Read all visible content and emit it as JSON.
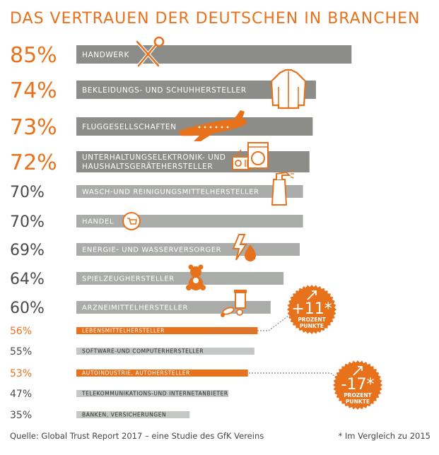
{
  "title": "DAS VERTRAUEN DER DEUTSCHEN IN BRANCHEN",
  "source": "Quelle: Global Trust Report 2017 – eine Studie des GfK Vereins",
  "footnote": "* Im Vergleich zu 2015",
  "colors": {
    "accent": "#e8711c",
    "bar_dark": "#8c8c88",
    "bar_mid": "#a9aca8",
    "bar_light": "#c4c8c4",
    "text_grey": "#4a4a4a"
  },
  "callouts": [
    {
      "value": "+11*",
      "unit_line1": "PROZENT",
      "unit_line2": "PUNKTE",
      "icon": "arrow-up-right-icon",
      "target": "LEBENSMITTELHERSTELLER"
    },
    {
      "value": "-17*",
      "unit_line1": "PROZENT",
      "unit_line2": "PUNKTE",
      "icon": "arrow-up-right-icon",
      "target": "AUTOINDUSTRIE, AUTOHERSTELLER"
    }
  ],
  "chart_data": {
    "type": "bar",
    "orientation": "horizontal",
    "categories": [
      "HANDWERK",
      "BEKLEIDUNGS- UND SCHUHHERSTELLER",
      "FLUGGESELLSCHAFTEN",
      "UNTERHALTUNGSELEKTRONIK- UND HAUSHALTSGERÄTEHERSTELLER",
      "WASCH-UND REINIGUNGSMITTELHERSTELLER",
      "HANDEL",
      "ENERGIE- UND WASSERVERSORGER",
      "SPIELZEUGHERSTELLER",
      "ARZNEIMITTELHERSTELLER",
      "LEBENSMITTELHERSTELLER",
      "SOFTWARE-UND COMPUTERHERSTELLER",
      "AUTOINDUSTRIE, AUTOHERSTELLER",
      "TELEKOMMUNIKATIONS-UND INTERNETANBIETER",
      "BANKEN, VERSICHERUNGEN"
    ],
    "values": [
      85,
      74,
      73,
      72,
      70,
      70,
      69,
      64,
      60,
      56,
      55,
      53,
      47,
      35
    ],
    "value_labels": [
      "85%",
      "74%",
      "73%",
      "72%",
      "70%",
      "70%",
      "69%",
      "64%",
      "60%",
      "56%",
      "55%",
      "53%",
      "47%",
      "35%"
    ],
    "highlighted": [
      true,
      true,
      true,
      true,
      false,
      false,
      false,
      false,
      false,
      true,
      false,
      true,
      false,
      false
    ],
    "icons": [
      "tools-icon",
      "shirt-icon",
      "airplane-icon",
      "appliance-icon",
      "spray-bottle-icon",
      "shopping-cart-icon",
      "energy-icon",
      "teddy-bear-icon",
      "medicine-icon",
      null,
      null,
      null,
      null,
      null
    ],
    "xlim": [
      0,
      100
    ],
    "grid": false,
    "legend": "none"
  }
}
